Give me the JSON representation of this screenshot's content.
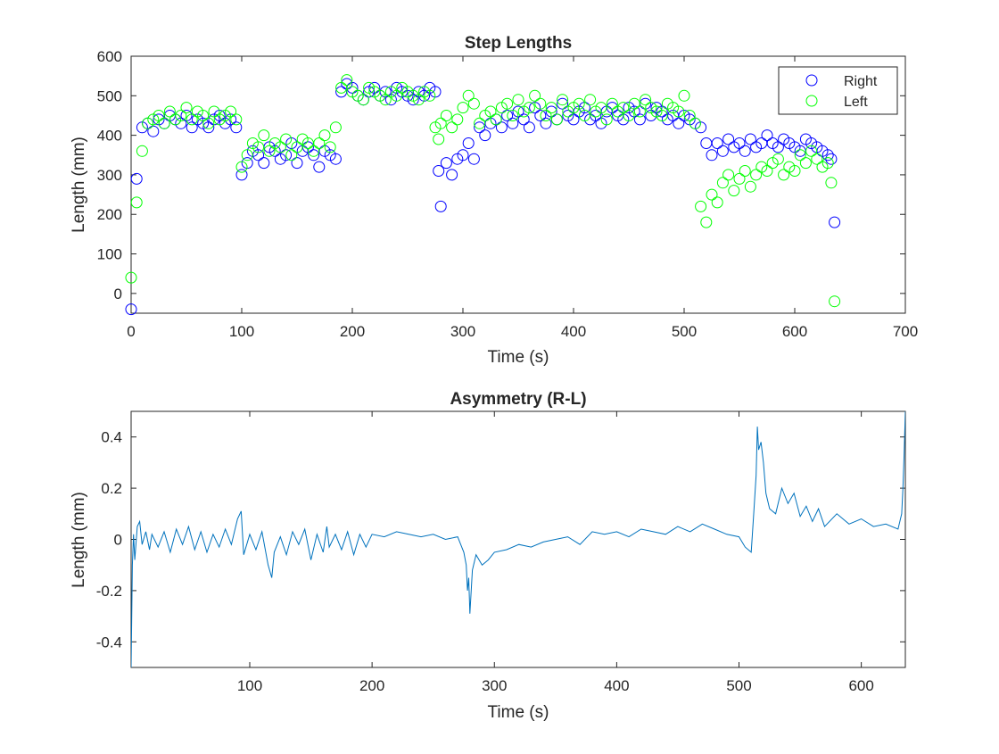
{
  "chart_data": [
    {
      "type": "scatter",
      "title": "Step Lengths",
      "xlabel": "Time (s)",
      "ylabel": "Length (mm)",
      "xlim": [
        0,
        700
      ],
      "ylim": [
        -50,
        600
      ],
      "xticks": [
        0,
        100,
        200,
        300,
        400,
        500,
        600,
        700
      ],
      "yticks": [
        0,
        100,
        200,
        300,
        400,
        500,
        600
      ],
      "grid": false,
      "legend": "top-right",
      "series": [
        {
          "name": "Right",
          "color": "#0000ff",
          "marker": "open-circle",
          "x": [
            0,
            5,
            10,
            15,
            20,
            25,
            30,
            35,
            40,
            45,
            50,
            55,
            60,
            65,
            70,
            75,
            80,
            85,
            90,
            95,
            100,
            105,
            110,
            115,
            120,
            125,
            130,
            135,
            140,
            145,
            150,
            155,
            160,
            165,
            170,
            175,
            180,
            185,
            190,
            195,
            200,
            205,
            210,
            215,
            220,
            225,
            230,
            235,
            240,
            245,
            250,
            255,
            260,
            265,
            270,
            275,
            278,
            280,
            285,
            290,
            295,
            300,
            305,
            310,
            315,
            320,
            325,
            330,
            335,
            340,
            345,
            350,
            355,
            360,
            365,
            370,
            375,
            380,
            385,
            390,
            395,
            400,
            405,
            410,
            415,
            420,
            425,
            430,
            435,
            440,
            445,
            450,
            455,
            460,
            465,
            470,
            475,
            480,
            485,
            490,
            495,
            500,
            505,
            510,
            515,
            520,
            525,
            530,
            535,
            540,
            545,
            550,
            555,
            560,
            565,
            570,
            575,
            580,
            585,
            590,
            595,
            600,
            605,
            610,
            615,
            620,
            625,
            630,
            633,
            636
          ],
          "y": [
            -40,
            290,
            420,
            430,
            410,
            440,
            430,
            450,
            440,
            430,
            450,
            420,
            440,
            430,
            420,
            440,
            450,
            430,
            440,
            420,
            300,
            330,
            360,
            350,
            330,
            370,
            360,
            340,
            350,
            380,
            330,
            360,
            370,
            350,
            320,
            360,
            350,
            340,
            510,
            530,
            520,
            500,
            490,
            510,
            520,
            500,
            510,
            490,
            520,
            510,
            500,
            490,
            510,
            500,
            520,
            510,
            310,
            220,
            330,
            300,
            340,
            350,
            380,
            340,
            420,
            400,
            430,
            440,
            420,
            450,
            430,
            460,
            440,
            420,
            470,
            450,
            430,
            460,
            440,
            480,
            450,
            440,
            460,
            470,
            440,
            450,
            430,
            460,
            470,
            450,
            440,
            470,
            460,
            440,
            480,
            450,
            470,
            460,
            440,
            450,
            430,
            450,
            440,
            430,
            420,
            380,
            350,
            380,
            360,
            390,
            370,
            380,
            360,
            390,
            370,
            380,
            400,
            380,
            370,
            390,
            380,
            370,
            360,
            390,
            380,
            370,
            360,
            350,
            340,
            180
          ]
        },
        {
          "name": "Left",
          "color": "#00ff00",
          "marker": "open-circle",
          "x": [
            0,
            5,
            10,
            15,
            20,
            25,
            30,
            35,
            40,
            45,
            50,
            55,
            60,
            65,
            70,
            75,
            80,
            85,
            90,
            95,
            100,
            105,
            110,
            115,
            120,
            125,
            130,
            135,
            140,
            145,
            150,
            155,
            160,
            165,
            170,
            175,
            180,
            185,
            190,
            195,
            200,
            205,
            210,
            215,
            220,
            225,
            230,
            235,
            240,
            245,
            250,
            255,
            260,
            265,
            270,
            275,
            278,
            280,
            285,
            290,
            295,
            300,
            305,
            310,
            315,
            320,
            325,
            330,
            335,
            340,
            345,
            350,
            355,
            360,
            365,
            370,
            375,
            380,
            385,
            390,
            395,
            400,
            405,
            410,
            415,
            420,
            425,
            430,
            435,
            440,
            445,
            450,
            455,
            460,
            465,
            470,
            475,
            480,
            485,
            490,
            495,
            500,
            505,
            510,
            515,
            520,
            525,
            530,
            535,
            540,
            545,
            550,
            555,
            560,
            565,
            570,
            575,
            580,
            585,
            590,
            595,
            600,
            605,
            610,
            615,
            620,
            625,
            630,
            633,
            636
          ],
          "y": [
            40,
            230,
            360,
            430,
            440,
            450,
            430,
            460,
            440,
            450,
            470,
            440,
            460,
            450,
            430,
            460,
            440,
            450,
            460,
            440,
            320,
            350,
            380,
            370,
            400,
            360,
            380,
            370,
            390,
            350,
            370,
            390,
            380,
            360,
            380,
            400,
            370,
            420,
            520,
            540,
            510,
            500,
            490,
            520,
            510,
            500,
            490,
            510,
            500,
            520,
            510,
            500,
            490,
            510,
            500,
            420,
            390,
            430,
            450,
            420,
            440,
            470,
            500,
            480,
            430,
            450,
            460,
            440,
            470,
            480,
            450,
            490,
            460,
            470,
            500,
            480,
            450,
            470,
            440,
            490,
            460,
            470,
            480,
            450,
            490,
            460,
            470,
            440,
            480,
            460,
            470,
            450,
            480,
            460,
            490,
            470,
            460,
            450,
            480,
            470,
            460,
            500,
            450,
            430,
            220,
            180,
            250,
            230,
            280,
            300,
            260,
            290,
            310,
            270,
            300,
            320,
            310,
            330,
            340,
            300,
            320,
            310,
            350,
            330,
            360,
            340,
            320,
            330,
            280,
            -20
          ]
        }
      ]
    },
    {
      "type": "line",
      "title": "Asymmetry (R-L)",
      "xlabel": "Time (s)",
      "ylabel": "Length (mm)",
      "xlim": [
        3,
        636
      ],
      "ylim": [
        -0.5,
        0.5
      ],
      "xticks": [
        100,
        200,
        300,
        400,
        500,
        600
      ],
      "yticks": [
        -0.4,
        -0.2,
        0,
        0.2,
        0.4
      ],
      "grid": false,
      "series": [
        {
          "name": "",
          "color": "#0072bd",
          "x": [
            3,
            4,
            5,
            6,
            8,
            10,
            12,
            15,
            18,
            20,
            25,
            30,
            35,
            40,
            45,
            50,
            55,
            60,
            65,
            70,
            75,
            80,
            85,
            90,
            93,
            95,
            100,
            105,
            110,
            115,
            118,
            120,
            125,
            130,
            135,
            140,
            145,
            150,
            155,
            160,
            163,
            165,
            170,
            175,
            180,
            185,
            190,
            195,
            200,
            210,
            220,
            230,
            240,
            250,
            260,
            270,
            275,
            277,
            278,
            279,
            280,
            282,
            285,
            290,
            295,
            300,
            310,
            320,
            330,
            340,
            350,
            360,
            370,
            380,
            390,
            400,
            410,
            420,
            430,
            440,
            450,
            460,
            470,
            480,
            490,
            500,
            505,
            510,
            512,
            514,
            515,
            516,
            518,
            520,
            522,
            525,
            530,
            535,
            540,
            545,
            550,
            555,
            560,
            565,
            570,
            580,
            590,
            600,
            610,
            620,
            630,
            633,
            634,
            635,
            636
          ],
          "y": [
            -0.5,
            -0.1,
            0.02,
            -0.08,
            0.05,
            0.07,
            -0.02,
            0.03,
            -0.04,
            0.02,
            -0.03,
            0.03,
            -0.05,
            0.04,
            -0.02,
            0.05,
            -0.04,
            0.03,
            -0.05,
            0.02,
            -0.03,
            0.04,
            -0.02,
            0.08,
            0.11,
            -0.06,
            0.02,
            -0.04,
            0.03,
            -0.1,
            -0.15,
            -0.05,
            0.01,
            -0.06,
            0.03,
            -0.02,
            0.04,
            -0.08,
            0.02,
            -0.05,
            0.05,
            -0.03,
            0.02,
            -0.04,
            0.03,
            -0.06,
            0.02,
            -0.03,
            0.02,
            0.01,
            0.03,
            0.02,
            0.01,
            0.02,
            0.0,
            0.01,
            -0.05,
            -0.1,
            -0.2,
            -0.15,
            -0.29,
            -0.12,
            -0.06,
            -0.1,
            -0.08,
            -0.05,
            -0.04,
            -0.02,
            -0.03,
            -0.01,
            0.0,
            0.01,
            -0.02,
            0.03,
            0.02,
            0.03,
            0.01,
            0.04,
            0.03,
            0.02,
            0.05,
            0.03,
            0.06,
            0.04,
            0.02,
            0.01,
            -0.03,
            -0.05,
            0.1,
            0.25,
            0.44,
            0.35,
            0.38,
            0.3,
            0.18,
            0.12,
            0.1,
            0.2,
            0.14,
            0.18,
            0.09,
            0.13,
            0.07,
            0.12,
            0.05,
            0.1,
            0.06,
            0.08,
            0.05,
            0.06,
            0.04,
            0.1,
            0.2,
            0.33,
            0.5
          ]
        }
      ]
    }
  ]
}
